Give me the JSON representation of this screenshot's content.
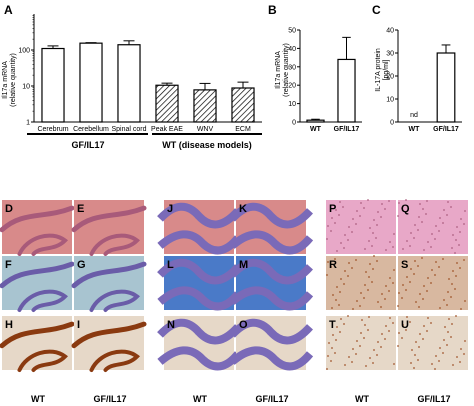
{
  "panels": {
    "A": "A",
    "B": "B",
    "C": "C",
    "micro": [
      "D",
      "E",
      "J",
      "K",
      "P",
      "Q",
      "F",
      "G",
      "L",
      "M",
      "R",
      "S",
      "H",
      "I",
      "N",
      "O",
      "T",
      "U"
    ]
  },
  "group_labels": {
    "gf": "GF/IL17",
    "wt": "WT (disease models)"
  },
  "bottom_labels": {
    "wt1": "WT",
    "gf1": "GF/IL17",
    "wt2": "WT",
    "gf2": "GF/IL17",
    "wt3": "WT",
    "gf3": "GF/IL17"
  },
  "chart_data": [
    {
      "type": "bar",
      "panel": "A",
      "ylabel": "Il17a mRNA (relative quantity)",
      "ylabel_lines": [
        "Il17a mRNA",
        "(relative quantity)"
      ],
      "yscale": "log",
      "ylim": [
        1,
        1000
      ],
      "yticks": [
        "1",
        "10",
        "100"
      ],
      "categories": [
        "Cerebrum",
        "Cerebellum",
        "Spinal cord",
        "Peak EAE",
        "WNV",
        "ECM"
      ],
      "values": [
        110,
        155,
        140,
        10.5,
        7.8,
        8.8
      ],
      "errors": [
        20,
        5,
        40,
        1.5,
        4,
        4
      ],
      "hatched": [
        false,
        false,
        false,
        true,
        true,
        true
      ]
    },
    {
      "type": "bar",
      "panel": "B",
      "ylabel": "Il17a mRNA (relative quantity)",
      "ylabel_lines": [
        "Il17a mRNA",
        "(relative quantity)"
      ],
      "ylim": [
        0,
        50
      ],
      "yticks": [
        "0",
        "10",
        "20",
        "30",
        "40",
        "50"
      ],
      "categories": [
        "WT",
        "GF/IL17"
      ],
      "values": [
        1,
        34
      ],
      "errors": [
        0.5,
        12
      ]
    },
    {
      "type": "bar",
      "panel": "C",
      "ylabel": "IL-17A protein [pg/ml]",
      "ylabel_lines": [
        "IL-17A protein",
        "[pg/ml]"
      ],
      "ylim": [
        0,
        40
      ],
      "yticks": [
        "0",
        "10",
        "20",
        "30",
        "40"
      ],
      "categories": [
        "WT",
        "GF/IL17"
      ],
      "values": [
        0,
        30
      ],
      "errors": [
        0,
        3.5
      ],
      "annotation": "nd"
    }
  ],
  "colors": {
    "he_bg": "#d88a8a",
    "he_tissue": "#a85a7a",
    "lfb_bg": "#a8c4d0",
    "lfb_tissue": "#6a5ca8",
    "ihc_bg": "#e6d8c8",
    "ihc_tissue": "#8a3a10",
    "cb_blue": "#4a7ac8",
    "cb_purple": "#7a6ab8",
    "sp_pink": "#e8a8c8",
    "sp_tan": "#d8b8a0",
    "sp_dots": "#9a4a20"
  }
}
